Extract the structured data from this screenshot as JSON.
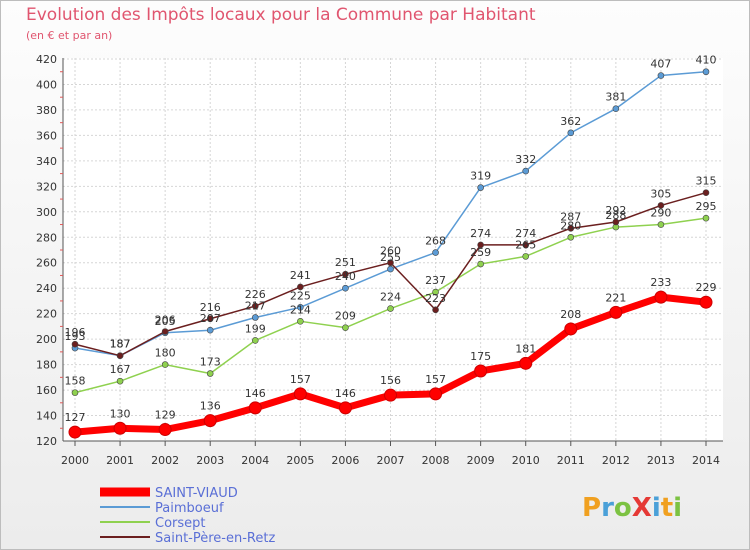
{
  "chart_data": {
    "type": "line",
    "title": "Evolution des Impôts locaux pour la Commune par Habitant",
    "subtitle": "(en € et par an)",
    "x": [
      "2000",
      "2001",
      "2002",
      "2003",
      "2004",
      "2005",
      "2006",
      "2007",
      "2008",
      "2009",
      "2010",
      "2011",
      "2012",
      "2013",
      "2014"
    ],
    "ylim": [
      120,
      420
    ],
    "yticks": [
      120,
      140,
      160,
      180,
      200,
      220,
      240,
      260,
      280,
      300,
      320,
      340,
      360,
      380,
      400,
      420
    ],
    "grid": true,
    "legend_position": "bottom-left",
    "series": [
      {
        "name": "SAINT-VIAUD",
        "color": "#ff0000",
        "highlight": true,
        "values": [
          127,
          130,
          129,
          136,
          146,
          157,
          146,
          156,
          157,
          175,
          181,
          208,
          221,
          233,
          229
        ]
      },
      {
        "name": "Paimboeuf",
        "color": "#5b9bd5",
        "values": [
          193,
          187,
          205,
          207,
          217,
          225,
          240,
          255,
          268,
          319,
          332,
          362,
          381,
          407,
          410
        ]
      },
      {
        "name": "Corsept",
        "color": "#8fd14f",
        "values": [
          158,
          167,
          180,
          173,
          199,
          214,
          209,
          224,
          237,
          259,
          265,
          280,
          288,
          290,
          295
        ]
      },
      {
        "name": "Saint-Père-en-Retz",
        "color": "#6b1f1f",
        "values": [
          196,
          187,
          206,
          216,
          226,
          241,
          251,
          260,
          223,
          274,
          274,
          287,
          292,
          305,
          315
        ]
      }
    ]
  },
  "logo": {
    "text": "ProXiti"
  }
}
